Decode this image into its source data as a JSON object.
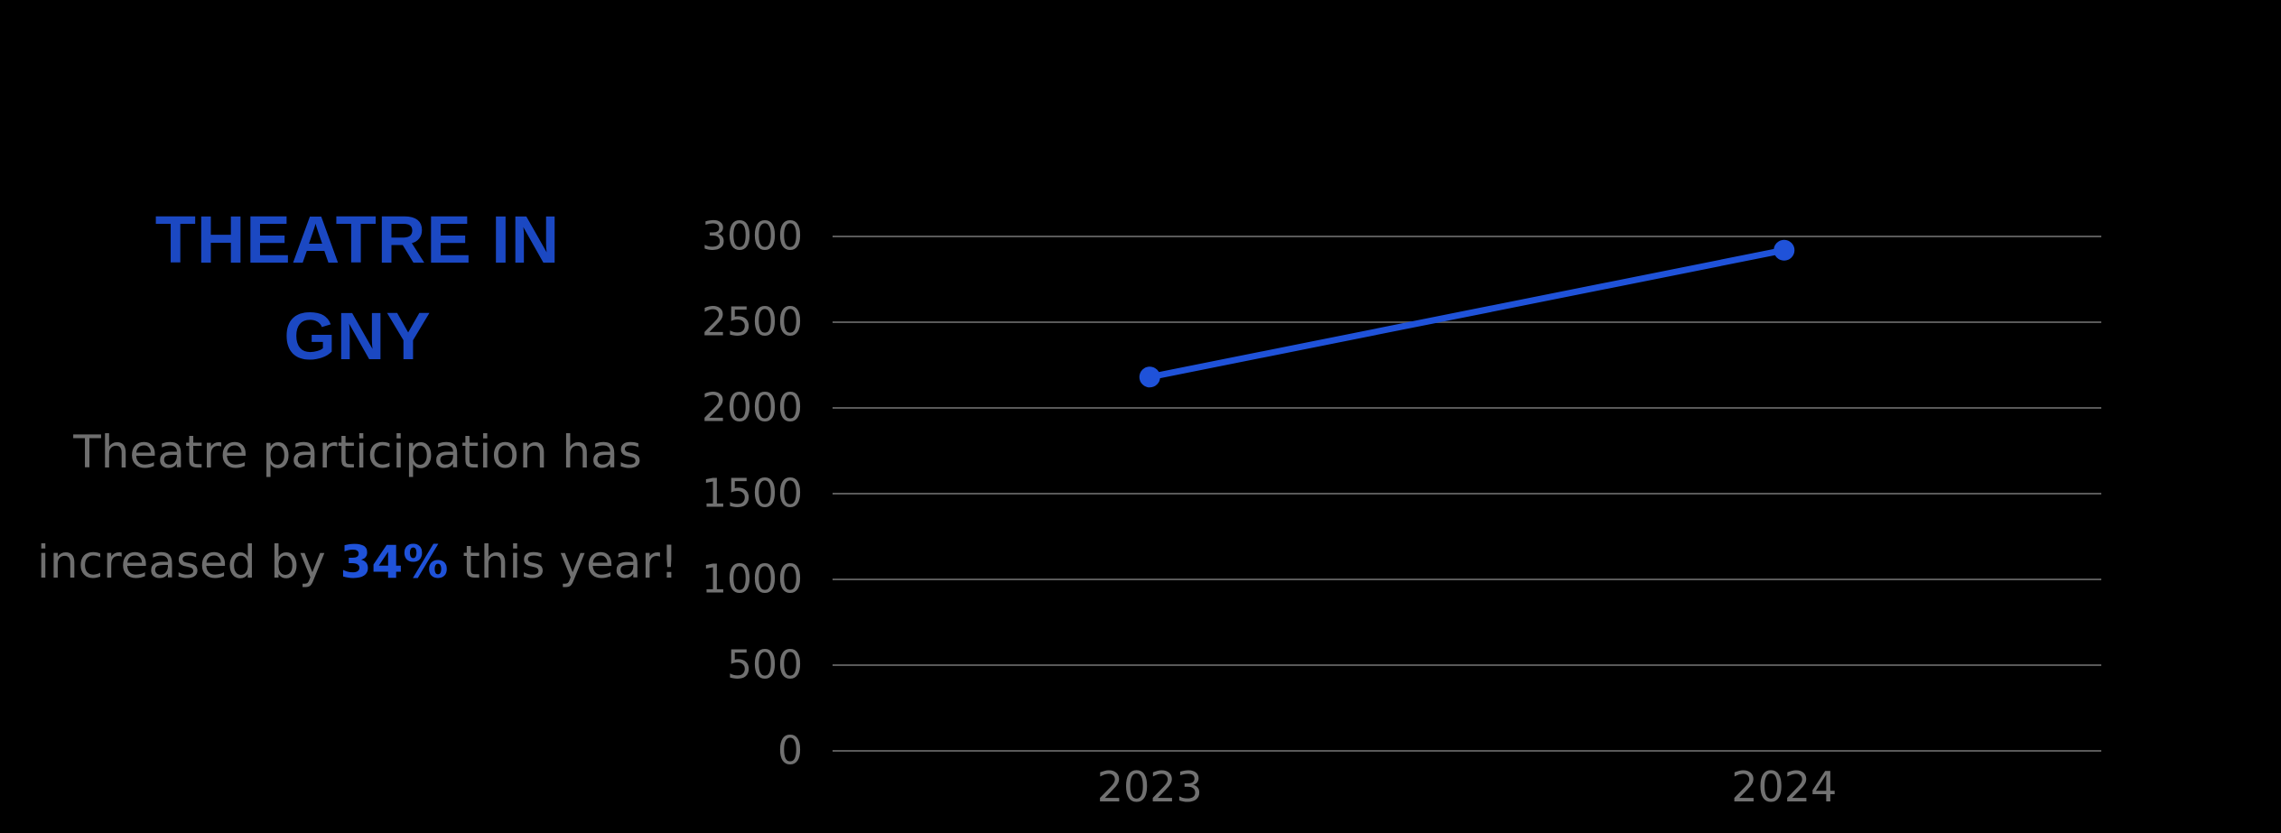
{
  "page": {
    "background": "#000000"
  },
  "panel": {
    "title_lines": [
      "THEATRE IN",
      "GNY"
    ],
    "subtitle_line1": "Theatre participation has",
    "subtitle_line2_prefix": "increased by ",
    "subtitle_highlight": "34%",
    "subtitle_line2_suffix": " this year!"
  },
  "colors": {
    "background": "#000000",
    "title_blue": "#1b48c2",
    "accent_blue": "#1f52d9",
    "line_blue": "#1f52d9",
    "grid_gray": "#5a5a5a",
    "tick_label_gray": "#717171",
    "subtitle_gray": "#6f6f6f"
  },
  "chart_data": {
    "type": "line",
    "title": "THEATRE IN GNY",
    "categories": [
      "2023",
      "2024"
    ],
    "series": [
      {
        "name": "",
        "values": [
          2180,
          2920
        ]
      }
    ],
    "yticks": [
      0,
      500,
      1000,
      1500,
      2000,
      2500,
      3000
    ],
    "ylim": [
      0,
      3000
    ],
    "xlabel": "",
    "ylabel": "",
    "grid": true,
    "legend": false,
    "marker": "circle",
    "annotation": "34% increase from 2023 to 2024"
  }
}
